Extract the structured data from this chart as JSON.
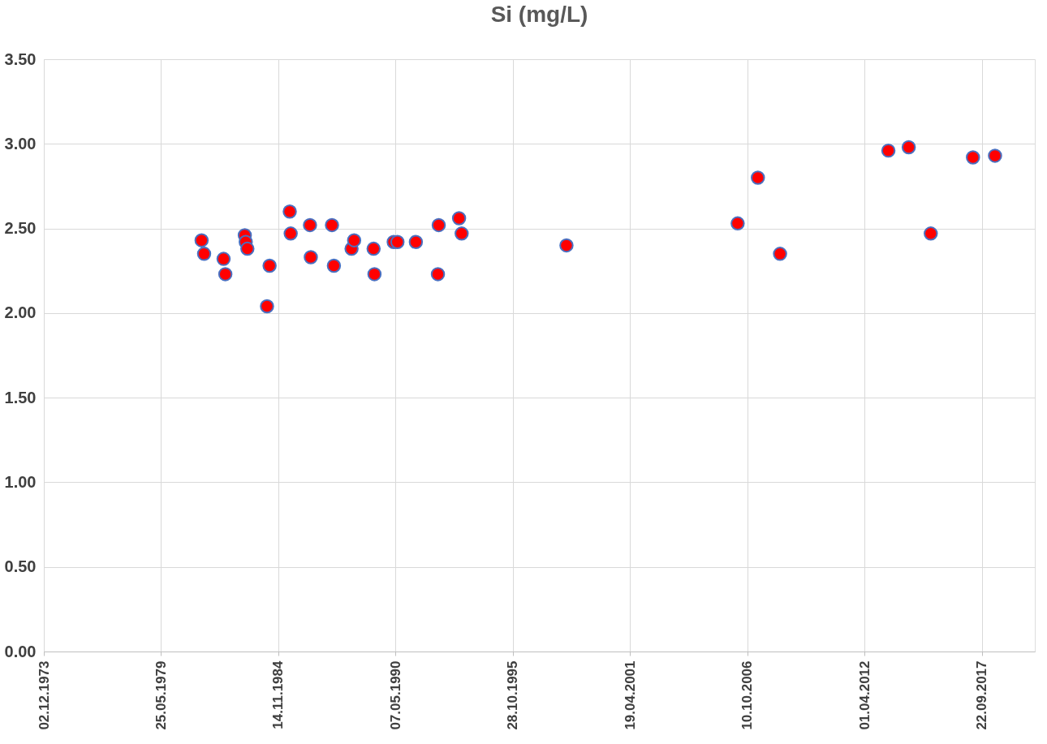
{
  "chart_data": {
    "type": "scatter",
    "title": "Si (mg/L)",
    "x": [
      "1981-04-15",
      "1981-05-28",
      "1982-04-25",
      "1982-05-25",
      "1983-04-22",
      "1983-05-08",
      "1983-06-05",
      "1984-06-18",
      "1984-05-05",
      "1985-05-28",
      "1985-06-13",
      "1986-05-08",
      "1986-05-22",
      "1987-05-18",
      "1987-06-20",
      "1988-04-16",
      "1988-05-30",
      "1989-04-27",
      "1989-05-12",
      "1990-04-05",
      "1990-06-08",
      "1991-04-18",
      "1992-05-12",
      "1992-04-28",
      "1993-04-24",
      "1993-06-07",
      "1998-04-30",
      "2006-04-28",
      "2007-04-08",
      "2008-04-20",
      "2013-05-12",
      "2014-04-24",
      "2015-05-05",
      "2017-04-24",
      "2018-05-05"
    ],
    "series": [
      {
        "color": "#ff0000",
        "values": [
          2.43,
          2.35,
          2.32,
          2.23,
          2.46,
          2.42,
          2.38,
          2.28,
          2.04,
          2.6,
          2.47,
          2.52,
          2.33,
          2.52,
          2.28,
          2.38,
          2.43,
          2.38,
          2.23,
          2.42,
          2.42,
          2.42,
          2.52,
          2.23,
          2.56,
          2.47,
          2.4,
          2.53,
          2.8,
          2.35,
          2.96,
          2.98,
          2.47,
          2.92,
          2.93
        ]
      }
    ],
    "xlim": [
      "1973-12-02",
      "2020-03-14"
    ],
    "xticks": [
      {
        "value": "1973-12-02",
        "label": "02.12.1973"
      },
      {
        "value": "1979-05-25",
        "label": "25.05.1979"
      },
      {
        "value": "1984-11-14",
        "label": "14.11.1984"
      },
      {
        "value": "1990-05-07",
        "label": "07.05.1990"
      },
      {
        "value": "1995-10-28",
        "label": "28.10.1995"
      },
      {
        "value": "2001-04-19",
        "label": "19.04.2001"
      },
      {
        "value": "2006-10-10",
        "label": "10.10.2006"
      },
      {
        "value": "2012-04-01",
        "label": "01.04.2012"
      },
      {
        "value": "2017-09-22",
        "label": "22.09.2017"
      }
    ],
    "ylim": [
      0,
      3.5
    ],
    "yticks": [
      {
        "value": 0,
        "label": "0.00"
      },
      {
        "value": 0.5,
        "label": "0.50"
      },
      {
        "value": 1,
        "label": "1.00"
      },
      {
        "value": 1.5,
        "label": "1.50"
      },
      {
        "value": 2,
        "label": "2.00"
      },
      {
        "value": 2.5,
        "label": "2.50"
      },
      {
        "value": 3,
        "label": "3.00"
      },
      {
        "value": 3.5,
        "label": "3.50"
      }
    ],
    "grid": true,
    "marker": "circle",
    "legend": false
  }
}
